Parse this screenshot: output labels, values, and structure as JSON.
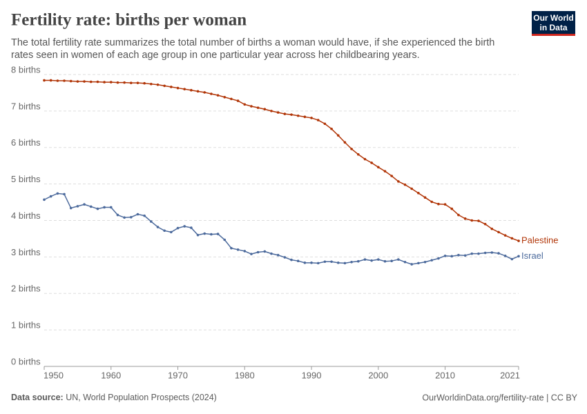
{
  "chart_data": {
    "type": "line",
    "title": "Fertility rate: births per woman",
    "subtitle": [
      "The total fertility rate summarizes the total number of births a woman would have, if she experienced the birth",
      "rates seen in women of each age group in one particular year across her childbearing years."
    ],
    "logo": [
      "Our World",
      "in Data"
    ],
    "source_label": "Data source:",
    "source": "UN, World Population Prospects (2024)",
    "credit": "OurWorldinData.org/fertility-rate | CC BY",
    "x": [
      1950,
      1951,
      1952,
      1953,
      1954,
      1955,
      1956,
      1957,
      1958,
      1959,
      1960,
      1961,
      1962,
      1963,
      1964,
      1965,
      1966,
      1967,
      1968,
      1969,
      1970,
      1971,
      1972,
      1973,
      1974,
      1975,
      1976,
      1977,
      1978,
      1979,
      1980,
      1981,
      1982,
      1983,
      1984,
      1985,
      1986,
      1987,
      1988,
      1989,
      1990,
      1991,
      1992,
      1993,
      1994,
      1995,
      1996,
      1997,
      1998,
      1999,
      2000,
      2001,
      2002,
      2003,
      2004,
      2005,
      2006,
      2007,
      2008,
      2009,
      2010,
      2011,
      2012,
      2013,
      2014,
      2015,
      2016,
      2017,
      2018,
      2019,
      2020,
      2021
    ],
    "series": [
      {
        "name": "Palestine",
        "color": "#b13507",
        "values": [
          7.84,
          7.84,
          7.83,
          7.83,
          7.82,
          7.81,
          7.81,
          7.8,
          7.8,
          7.79,
          7.79,
          7.78,
          7.78,
          7.77,
          7.77,
          7.76,
          7.74,
          7.72,
          7.69,
          7.66,
          7.63,
          7.6,
          7.57,
          7.54,
          7.51,
          7.47,
          7.43,
          7.38,
          7.33,
          7.28,
          7.18,
          7.13,
          7.09,
          7.05,
          7.0,
          6.96,
          6.92,
          6.9,
          6.87,
          6.84,
          6.81,
          6.75,
          6.65,
          6.51,
          6.33,
          6.14,
          5.96,
          5.81,
          5.68,
          5.58,
          5.46,
          5.35,
          5.22,
          5.07,
          4.98,
          4.87,
          4.75,
          4.63,
          4.51,
          4.45,
          4.44,
          4.32,
          4.15,
          4.05,
          4.0,
          3.99,
          3.9,
          3.77,
          3.68,
          3.59,
          3.51,
          3.44
        ]
      },
      {
        "name": "Israel",
        "color": "#4c6a9c",
        "values": [
          4.57,
          4.66,
          4.74,
          4.72,
          4.34,
          4.39,
          4.44,
          4.38,
          4.32,
          4.36,
          4.36,
          4.15,
          4.08,
          4.09,
          4.17,
          4.13,
          3.97,
          3.82,
          3.72,
          3.68,
          3.79,
          3.84,
          3.8,
          3.6,
          3.64,
          3.62,
          3.63,
          3.47,
          3.24,
          3.2,
          3.16,
          3.08,
          3.13,
          3.15,
          3.09,
          3.05,
          2.99,
          2.92,
          2.89,
          2.84,
          2.84,
          2.83,
          2.87,
          2.87,
          2.84,
          2.83,
          2.86,
          2.88,
          2.93,
          2.9,
          2.93,
          2.88,
          2.89,
          2.93,
          2.86,
          2.8,
          2.83,
          2.86,
          2.91,
          2.96,
          3.03,
          3.02,
          3.05,
          3.04,
          3.09,
          3.09,
          3.11,
          3.12,
          3.1,
          3.03,
          2.94,
          3.02
        ]
      }
    ],
    "xlim": [
      1950,
      2021
    ],
    "xticks": [
      1950,
      1960,
      1970,
      1980,
      1990,
      2000,
      2010,
      2021
    ],
    "ylim": [
      0,
      8
    ],
    "yticks": [
      {
        "value": 0,
        "label": "0 births"
      },
      {
        "value": 1,
        "label": "1 births"
      },
      {
        "value": 2,
        "label": "2 births"
      },
      {
        "value": 3,
        "label": "3 births"
      },
      {
        "value": 4,
        "label": "4 births"
      },
      {
        "value": 5,
        "label": "5 births"
      },
      {
        "value": 6,
        "label": "6 births"
      },
      {
        "value": 7,
        "label": "7 births"
      },
      {
        "value": 8,
        "label": "8 births"
      }
    ],
    "grid": true
  }
}
